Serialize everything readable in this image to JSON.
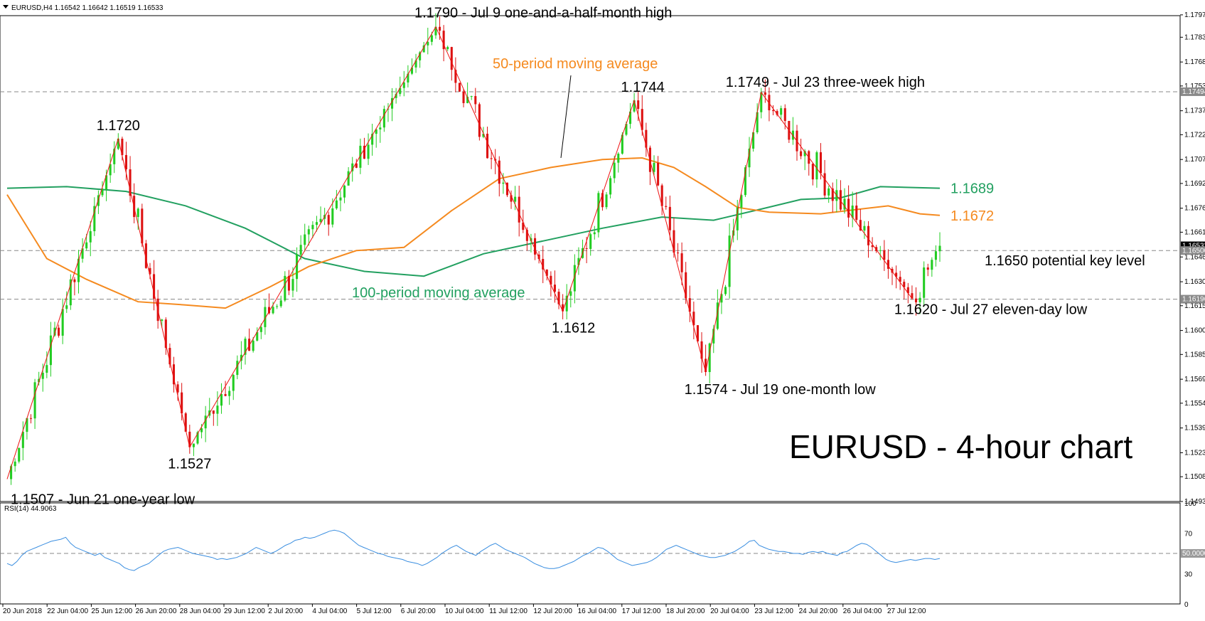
{
  "header": {
    "symbol_info": "EURUSD,H4  1.16542 1.16642 1.16519 1.16533",
    "rsi_info": "RSI(14) 44.9063"
  },
  "chart_data": [
    {
      "type": "candlestick",
      "title": "EURUSD - 4-hour chart",
      "ylim": [
        1.1493,
        1.1797
      ],
      "grid": false,
      "colors": {
        "up": "#22cc22",
        "down": "#dd1111",
        "ma50": "#f58a1f",
        "ma100": "#22a060",
        "zigzag": "#ee1111",
        "dashed": "#888888"
      },
      "y_ticks": [
        "1.17975",
        "1.17835",
        "1.17680",
        "1.17530",
        "1.17375",
        "1.17225",
        "1.17070",
        "1.16920",
        "1.16765",
        "1.16615",
        "1.16460",
        "1.16305",
        "1.16155",
        "1.16000",
        "1.15850",
        "1.15695",
        "1.15545",
        "1.15390",
        "1.15235",
        "1.15085",
        "1.14930"
      ],
      "x_ticks": [
        "20 Jun 2018",
        "22 Jun 04:00",
        "25 Jun 12:00",
        "26 Jun 20:00",
        "28 Jun 04:00",
        "29 Jun 12:00",
        "2 Jul 20:00",
        "4 Jul 04:00",
        "5 Jul 12:00",
        "6 Jul 20:00",
        "10 Jul 04:00",
        "11 Jul 12:00",
        "12 Jul 20:00",
        "16 Jul 04:00",
        "17 Jul 12:00",
        "18 Jul 20:00",
        "20 Jul 04:00",
        "23 Jul 12:00",
        "24 Jul 20:00",
        "26 Jul 04:00",
        "27 Jul 12:00"
      ],
      "price_tags": [
        {
          "value": 1.17494,
          "label": "1.17494"
        },
        {
          "value": 1.1653,
          "label": "1.16533"
        },
        {
          "value": 1.165,
          "label": "1.16500"
        },
        {
          "value": 1.16196,
          "label": "1.16196"
        }
      ],
      "end_labels": [
        {
          "value": 1.1689,
          "label": "1.1689",
          "color": "#22a060"
        },
        {
          "value": 1.1672,
          "label": "1.1672",
          "color": "#f58a1f"
        }
      ],
      "pivots": [
        {
          "x": 0,
          "y": 1.1507,
          "label": "1.1507 - Jun 21 one-year low"
        },
        {
          "x": 28,
          "y": 1.172,
          "label": "1.1720"
        },
        {
          "x": 46,
          "y": 1.1527,
          "label": "1.1527"
        },
        {
          "x": 108,
          "y": 1.179,
          "label": "1.1790 - Jul 9 one-and-a-half-month high"
        },
        {
          "x": 140,
          "y": 1.1612,
          "label": "1.1612"
        },
        {
          "x": 158,
          "y": 1.1744,
          "label": "1.1744"
        },
        {
          "x": 176,
          "y": 1.1574,
          "label": "1.1574 - Jul 19 one-month low"
        },
        {
          "x": 190,
          "y": 1.1749,
          "label": "1.1749 - Jul 23 three-week high"
        },
        {
          "x": 228,
          "y": 1.162,
          "label": "1.1620 - Jul 27 eleven-day low"
        },
        {
          "x": 235,
          "y": 1.1653,
          "label": ""
        }
      ],
      "ma50": [
        {
          "x": 0,
          "y": 1.1685
        },
        {
          "x": 10,
          "y": 1.1645
        },
        {
          "x": 20,
          "y": 1.1632
        },
        {
          "x": 33,
          "y": 1.1618
        },
        {
          "x": 45,
          "y": 1.1616
        },
        {
          "x": 55,
          "y": 1.1614
        },
        {
          "x": 66,
          "y": 1.1627
        },
        {
          "x": 76,
          "y": 1.164
        },
        {
          "x": 88,
          "y": 1.165
        },
        {
          "x": 100,
          "y": 1.1652
        },
        {
          "x": 112,
          "y": 1.1675
        },
        {
          "x": 124,
          "y": 1.1695
        },
        {
          "x": 137,
          "y": 1.1702
        },
        {
          "x": 150,
          "y": 1.1707
        },
        {
          "x": 160,
          "y": 1.1708
        },
        {
          "x": 168,
          "y": 1.1702
        },
        {
          "x": 176,
          "y": 1.169
        },
        {
          "x": 184,
          "y": 1.1677
        },
        {
          "x": 192,
          "y": 1.1674
        },
        {
          "x": 205,
          "y": 1.1673
        },
        {
          "x": 215,
          "y": 1.1676
        },
        {
          "x": 222,
          "y": 1.1678
        },
        {
          "x": 230,
          "y": 1.1673
        },
        {
          "x": 235,
          "y": 1.1672
        }
      ],
      "ma100": [
        {
          "x": 0,
          "y": 1.1689
        },
        {
          "x": 15,
          "y": 1.169
        },
        {
          "x": 30,
          "y": 1.1687
        },
        {
          "x": 45,
          "y": 1.1678
        },
        {
          "x": 60,
          "y": 1.1664
        },
        {
          "x": 75,
          "y": 1.1645
        },
        {
          "x": 90,
          "y": 1.1637
        },
        {
          "x": 105,
          "y": 1.1634
        },
        {
          "x": 120,
          "y": 1.1648
        },
        {
          "x": 135,
          "y": 1.1656
        },
        {
          "x": 150,
          "y": 1.1664
        },
        {
          "x": 165,
          "y": 1.1671
        },
        {
          "x": 178,
          "y": 1.1669
        },
        {
          "x": 190,
          "y": 1.1676
        },
        {
          "x": 200,
          "y": 1.1682
        },
        {
          "x": 210,
          "y": 1.1683
        },
        {
          "x": 220,
          "y": 1.169
        },
        {
          "x": 235,
          "y": 1.1689
        }
      ],
      "annotations": [
        {
          "text": "50-period moving average",
          "color": "#f58a1f"
        },
        {
          "text": "100-period moving average",
          "color": "#22a060"
        },
        {
          "text": "1.1650 potential key level",
          "color": "#000000"
        }
      ]
    },
    {
      "type": "line",
      "title": "",
      "ylim": [
        0,
        100
      ],
      "y_ticks": [
        "100",
        "70",
        "50.0000",
        "30",
        "0"
      ],
      "level": 50,
      "color": "#3a8ee0",
      "series": [
        {
          "name": "",
          "values": [
            40,
            38,
            42,
            48,
            52,
            54,
            56,
            58,
            60,
            62,
            63,
            64,
            66,
            60,
            56,
            54,
            52,
            50,
            48,
            50,
            46,
            44,
            42,
            40,
            36,
            34,
            33,
            36,
            38,
            40,
            44,
            48,
            52,
            54,
            55,
            56,
            54,
            52,
            50,
            49,
            48,
            47,
            46,
            44,
            45,
            44,
            45,
            46,
            48,
            50,
            53,
            56,
            54,
            52,
            50,
            52,
            55,
            58,
            60,
            63,
            64,
            66,
            65,
            66,
            68,
            70,
            72,
            73,
            72,
            70,
            66,
            62,
            58,
            56,
            54,
            52,
            50,
            49,
            47,
            46,
            45,
            44,
            42,
            41,
            40,
            38,
            40,
            43,
            46,
            50,
            53,
            56,
            58,
            55,
            52,
            50,
            48,
            52,
            55,
            58,
            60,
            57,
            54,
            52,
            50,
            48,
            46,
            43,
            40,
            38,
            36,
            35,
            35,
            36,
            38,
            40,
            42,
            45,
            48,
            50,
            53,
            56,
            55,
            52,
            48,
            44,
            42,
            40,
            38,
            39,
            40,
            41,
            43,
            46,
            50,
            54,
            56,
            58,
            56,
            54,
            52,
            50,
            48,
            47,
            46,
            46,
            47,
            48,
            50,
            52,
            55,
            58,
            62,
            63,
            58,
            56,
            54,
            53,
            52,
            52,
            51,
            50,
            50,
            49,
            51,
            52,
            51,
            52,
            50,
            49,
            48,
            51,
            52,
            55,
            58,
            60,
            59,
            56,
            52,
            48,
            44,
            42,
            41,
            42,
            43,
            44,
            43,
            44,
            45,
            45,
            44,
            45
          ]
        }
      ]
    }
  ]
}
